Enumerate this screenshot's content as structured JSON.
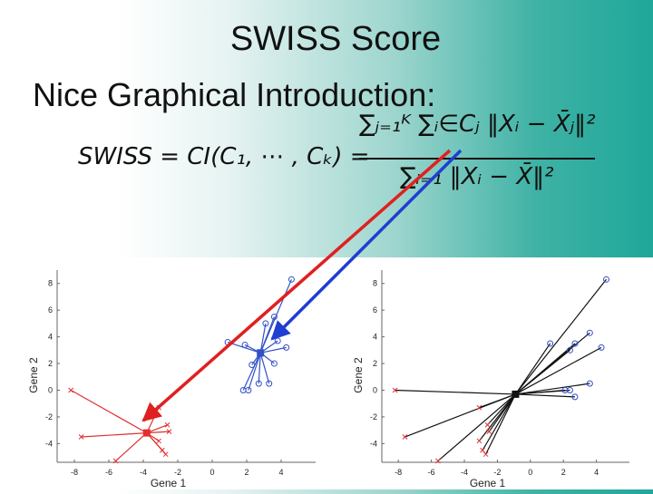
{
  "slide": {
    "title": "SWISS Score",
    "subtitle": "Nice Graphical Introduction:",
    "formula": {
      "lhs": "SWISS = CI(C₁, ⋯ , Cₖ) =",
      "numerator": "∑ⱼ₌₁ᴷ ∑ᵢ∈Cⱼ ‖Xᵢ − X̄ⱼ‖²",
      "denominator": "∑ᵢ₌₁ ‖Xᵢ − X̄‖²"
    }
  },
  "colors": {
    "red_cluster": "#e03030",
    "blue_cluster": "#3050c8",
    "black": "#111111",
    "red_arrow": "#e02020",
    "blue_arrow": "#1f3fd0"
  },
  "chart_data": [
    {
      "type": "scatter",
      "title": "",
      "xlabel": "Gene 1",
      "ylabel": "Gene 2",
      "xlim": [
        -9,
        6
      ],
      "ylim": [
        -5.4,
        9
      ],
      "xticks": [
        "-8",
        "-6",
        "-4",
        "-2",
        "0",
        "2",
        "4"
      ],
      "yticks": [
        "8",
        "6",
        "4",
        "2",
        "0",
        "-2",
        "-4"
      ],
      "centers": [
        {
          "x": 2.8,
          "y": 2.8
        },
        {
          "x": -3.8,
          "y": -3.2
        }
      ],
      "series": [
        {
          "marker": "o",
          "values": [
            [
              4.6,
              8.3
            ],
            [
              3.6,
              5.5
            ],
            [
              3.1,
              5.0
            ],
            [
              0.9,
              3.6
            ],
            [
              1.9,
              3.4
            ],
            [
              3.8,
              3.7
            ],
            [
              4.3,
              3.2
            ],
            [
              2.3,
              1.9
            ],
            [
              3.6,
              2.0
            ],
            [
              2.1,
              0.0
            ],
            [
              2.7,
              0.5
            ],
            [
              3.3,
              0.5
            ],
            [
              1.8,
              0.0
            ]
          ]
        },
        {
          "marker": "x",
          "values": [
            [
              -8.2,
              0.0
            ],
            [
              -3.1,
              -1.3
            ],
            [
              -2.6,
              -2.6
            ],
            [
              -2.5,
              -3.1
            ],
            [
              -7.6,
              -3.5
            ],
            [
              -5.6,
              -5.3
            ],
            [
              -3.1,
              -3.8
            ],
            [
              -2.7,
              -4.8
            ],
            [
              -2.9,
              -4.5
            ]
          ]
        }
      ]
    },
    {
      "type": "scatter",
      "title": "",
      "xlabel": "Gene 1",
      "ylabel": "Gene 2",
      "xlim": [
        -9,
        6
      ],
      "ylim": [
        -5.4,
        9
      ],
      "xticks": [
        "-8",
        "-6",
        "-4",
        "-2",
        "0",
        "2",
        "4"
      ],
      "yticks": [
        "8",
        "6",
        "4",
        "2",
        "0",
        "-2",
        "-4"
      ],
      "centers": [
        {
          "x": -0.9,
          "y": -0.3
        }
      ],
      "series": [
        {
          "marker": "o",
          "values": [
            [
              4.6,
              8.3
            ],
            [
              3.6,
              4.3
            ],
            [
              1.2,
              3.5
            ],
            [
              2.7,
              3.5
            ],
            [
              4.3,
              3.2
            ],
            [
              2.4,
              3.0
            ],
            [
              3.6,
              0.5
            ],
            [
              2.1,
              0.0
            ],
            [
              2.7,
              -0.5
            ],
            [
              2.4,
              0.0
            ]
          ]
        },
        {
          "marker": "x",
          "values": [
            [
              -8.2,
              0.0
            ],
            [
              -3.1,
              -1.3
            ],
            [
              -2.6,
              -2.6
            ],
            [
              -2.5,
              -3.1
            ],
            [
              -7.6,
              -3.5
            ],
            [
              -5.6,
              -5.3
            ],
            [
              -3.1,
              -3.8
            ],
            [
              -2.7,
              -4.8
            ],
            [
              -2.9,
              -4.5
            ]
          ]
        }
      ]
    }
  ]
}
